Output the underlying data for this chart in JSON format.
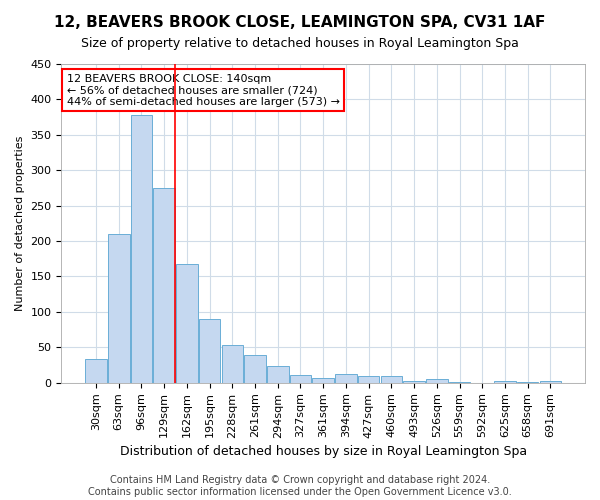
{
  "title": "12, BEAVERS BROOK CLOSE, LEAMINGTON SPA, CV31 1AF",
  "subtitle": "Size of property relative to detached houses in Royal Leamington Spa",
  "xlabel": "Distribution of detached houses by size in Royal Leamington Spa",
  "ylabel": "Number of detached properties",
  "footer_line1": "Contains HM Land Registry data © Crown copyright and database right 2024.",
  "footer_line2": "Contains public sector information licensed under the Open Government Licence v3.0.",
  "annotation_line1": "12 BEAVERS BROOK CLOSE: 140sqm",
  "annotation_line2": "← 56% of detached houses are smaller (724)",
  "annotation_line3": "44% of semi-detached houses are larger (573) →",
  "categories": [
    "30sqm",
    "63sqm",
    "96sqm",
    "129sqm",
    "162sqm",
    "195sqm",
    "228sqm",
    "261sqm",
    "294sqm",
    "327sqm",
    "361sqm",
    "394sqm",
    "427sqm",
    "460sqm",
    "493sqm",
    "526sqm",
    "559sqm",
    "592sqm",
    "625sqm",
    "658sqm",
    "691sqm"
  ],
  "values": [
    33,
    210,
    378,
    275,
    167,
    90,
    53,
    39,
    23,
    11,
    7,
    12,
    10,
    9,
    3,
    5,
    1,
    0,
    3,
    1,
    3
  ],
  "bar_color": "#c5d8f0",
  "bar_edgecolor": "#6aaed6",
  "vline_color": "red",
  "vline_pos": 3.47,
  "background_color": "#ffffff",
  "grid_color": "#d0dce8",
  "ylim": [
    0,
    450
  ],
  "yticks": [
    0,
    50,
    100,
    150,
    200,
    250,
    300,
    350,
    400,
    450
  ],
  "title_fontsize": 11,
  "subtitle_fontsize": 9,
  "ylabel_fontsize": 8,
  "xlabel_fontsize": 9,
  "tick_fontsize": 8,
  "annotation_fontsize": 8,
  "footer_fontsize": 7
}
